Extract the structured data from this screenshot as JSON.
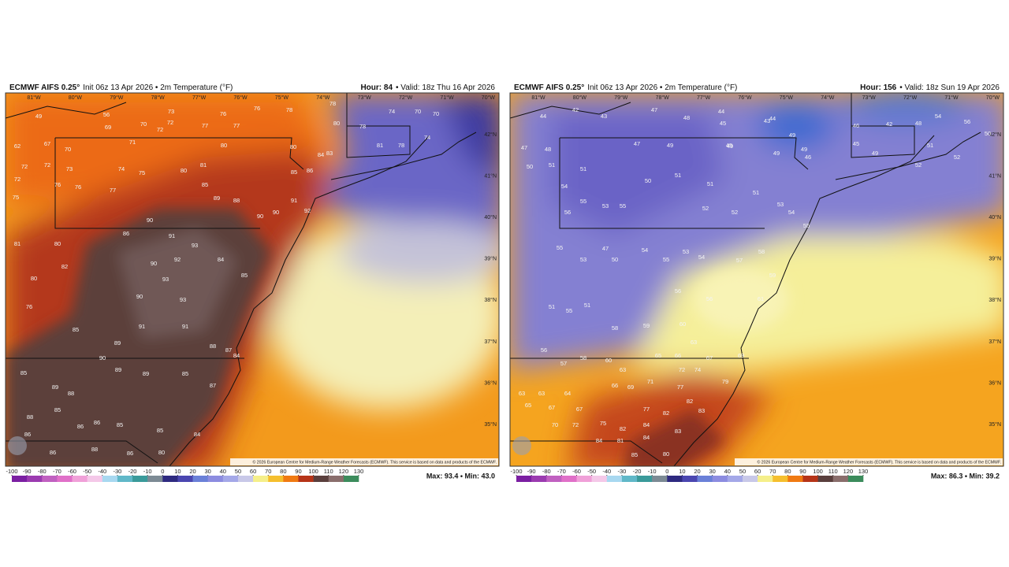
{
  "colorbar": {
    "ticks": [
      -100,
      -90,
      -80,
      -70,
      -60,
      -50,
      -40,
      -30,
      -20,
      -10,
      0,
      10,
      20,
      30,
      40,
      50,
      60,
      70,
      80,
      90,
      100,
      110,
      120,
      130
    ],
    "colors": [
      "#7b1fa2",
      "#9b3bb0",
      "#c060c0",
      "#e070c8",
      "#f0a0d8",
      "#f4c8e8",
      "#a8d8f0",
      "#60b8c8",
      "#3a9a9a",
      "#7c8a94",
      "#2e2a80",
      "#4a46b0",
      "#6a80d8",
      "#8c8ce0",
      "#a4a8e8",
      "#c8c8e8",
      "#f5ef8a",
      "#f5bf2e",
      "#f07a12",
      "#b63418",
      "#5a3f3d",
      "#8a6e6c",
      "#3c8c5c"
    ]
  },
  "panels": [
    {
      "model": "ECMWF AIFS 0.25°",
      "run": "Init 06z 13 Apr 2026 • 2m Temperature (°F)",
      "hour": "Hour: 84",
      "valid": "• Valid: 18z Thu 16 Apr 2026",
      "stats": "Max: 93.4 • Min: 43.0",
      "copyright": "© 2026 European Centre for Medium-Range Weather Forecasts (ECMWF). This service is based on data and products of the ECMWF.",
      "lon_labels": [
        "81°W",
        "80°W",
        "79°W",
        "78°W",
        "77°W",
        "76°W",
        "75°W",
        "74°W",
        "73°W",
        "72°W",
        "71°W",
        "70°W"
      ],
      "lat_labels": [
        "42°N",
        "41°N",
        "40°N",
        "39°N",
        "38°N",
        "37°N",
        "36°N",
        "35°N"
      ],
      "temps": [
        49,
        56,
        69,
        70,
        73,
        72,
        72,
        77,
        76,
        77,
        76,
        78,
        78,
        80,
        78,
        74,
        70,
        70,
        74,
        71,
        80,
        80,
        84,
        83,
        81,
        78,
        62,
        67,
        70,
        72,
        72,
        73,
        74,
        75,
        80,
        81,
        85,
        86,
        72,
        76,
        76,
        77,
        75,
        85,
        89,
        88,
        90,
        90,
        91,
        92,
        90,
        86,
        91,
        93,
        90,
        92,
        93,
        90,
        93,
        84,
        85,
        81,
        80,
        80,
        82,
        76,
        85,
        89,
        91,
        91,
        88,
        87,
        84,
        90,
        89,
        89,
        85,
        87,
        85,
        89,
        88,
        88,
        85,
        86,
        86,
        85,
        85,
        84,
        86,
        86,
        88,
        86,
        80
      ]
    },
    {
      "model": "ECMWF AIFS 0.25°",
      "run": "Init 06z 13 Apr 2026 • 2m Temperature (°F)",
      "hour": "Hour: 156",
      "valid": "• Valid: 18z Sun 19 Apr 2026",
      "stats": "Max: 86.3 • Min: 39.2",
      "copyright": "© 2026 European Centre for Medium-Range Weather Forecasts (ECMWF). This service is based on data and products of the ECMWF.",
      "lon_labels": [
        "81°W",
        "80°W",
        "79°W",
        "78°W",
        "77°W",
        "76°W",
        "75°W",
        "74°W",
        "73°W",
        "72°W",
        "71°W",
        "70°W"
      ],
      "lat_labels": [
        "42°N",
        "41°N",
        "40°N",
        "39°N",
        "38°N",
        "37°N",
        "36°N",
        "35°N"
      ],
      "temps": [
        44,
        42,
        43,
        47,
        48,
        44,
        44,
        45,
        43,
        49,
        45,
        46,
        45,
        49,
        46,
        42,
        48,
        54,
        56,
        50,
        51,
        52,
        52,
        47,
        48,
        50,
        51,
        51,
        47,
        49,
        49,
        49,
        49,
        54,
        55,
        56,
        53,
        55,
        50,
        51,
        51,
        52,
        52,
        51,
        53,
        54,
        55,
        47,
        50,
        53,
        55,
        54,
        55,
        53,
        54,
        57,
        58,
        59,
        56,
        56,
        61,
        51,
        55,
        51,
        58,
        59,
        60,
        63,
        56,
        57,
        58,
        60,
        63,
        65,
        66,
        67,
        69,
        72,
        74,
        63,
        63,
        64,
        66,
        69,
        71,
        77,
        82,
        83,
        79,
        65,
        67,
        67,
        77,
        82,
        70,
        72,
        75,
        82,
        84,
        83,
        84,
        81,
        85,
        84,
        80
      ]
    }
  ]
}
